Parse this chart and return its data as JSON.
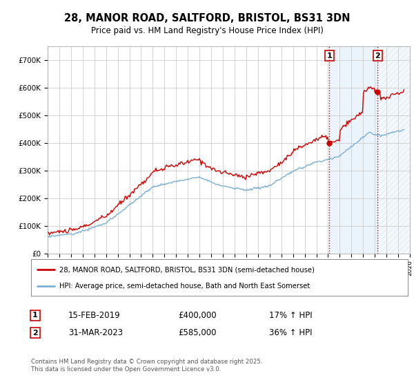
{
  "title_line1": "28, MANOR ROAD, SALTFORD, BRISTOL, BS31 3DN",
  "title_line2": "Price paid vs. HM Land Registry's House Price Index (HPI)",
  "ylim": [
    0,
    750000
  ],
  "yticks": [
    0,
    100000,
    200000,
    300000,
    400000,
    500000,
    600000,
    700000
  ],
  "ytick_labels": [
    "£0",
    "£100K",
    "£200K",
    "£300K",
    "£400K",
    "£500K",
    "£600K",
    "£700K"
  ],
  "year_start": 1995,
  "year_end": 2026,
  "sale1_date": 2019.12,
  "sale1_price": 400000,
  "sale1_text": "15-FEB-2019",
  "sale1_pct": "17% ↑ HPI",
  "sale2_date": 2023.25,
  "sale2_price": 585000,
  "sale2_text": "31-MAR-2023",
  "sale2_pct": "36% ↑ HPI",
  "line_color_property": "#cc0000",
  "line_color_hpi": "#7bafd4",
  "legend_property": "28, MANOR ROAD, SALTFORD, BRISTOL, BS31 3DN (semi-detached house)",
  "legend_hpi": "HPI: Average price, semi-detached house, Bath and North East Somerset",
  "footer": "Contains HM Land Registry data © Crown copyright and database right 2025.\nThis data is licensed under the Open Government Licence v3.0.",
  "bg_color": "#ffffff",
  "plot_bg_color": "#ffffff",
  "grid_color": "#cccccc",
  "sale_vline_color": "#cc0000",
  "highlight_color": "#d8e8f8",
  "hatch_color": "#c8d8e8"
}
